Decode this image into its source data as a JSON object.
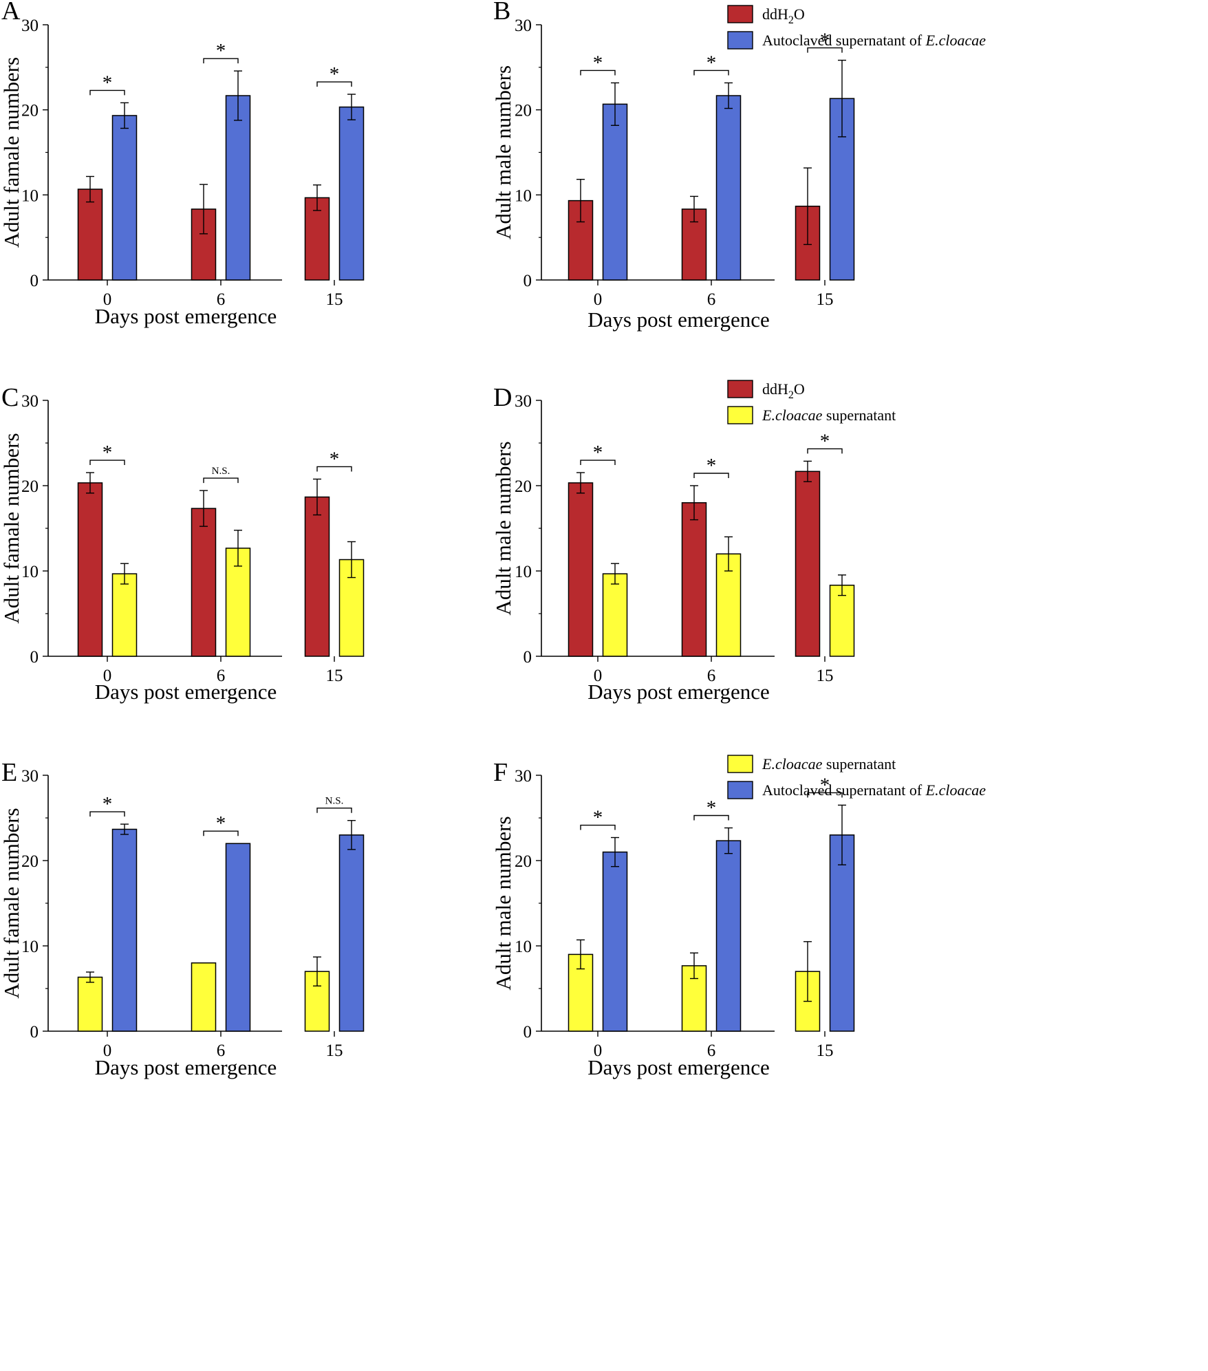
{
  "colors": {
    "ddh2o": "#b82a2e",
    "autoclaved": "#5470d4",
    "supernatant": "#ffff3a",
    "axis": "#000000"
  },
  "x_label": "Days post emergence",
  "chart_data": [
    {
      "type": "bar",
      "panel": "A",
      "categories": [
        "0",
        "6",
        "15"
      ],
      "ylabel": "Adult famale numbers",
      "xlabel": "Days post emergence",
      "ylim": [
        0,
        30
      ],
      "yticks": [
        0,
        10,
        20,
        30
      ],
      "series": [
        {
          "name": "ddH2O",
          "color": "ddh2o",
          "values": [
            10.67,
            8.33,
            9.67
          ],
          "errors": [
            1.5,
            2.9,
            1.5
          ]
        },
        {
          "name": "Autoclaved supernatant of E.cloacae",
          "color": "autoclaved",
          "values": [
            19.33,
            21.67,
            20.33
          ],
          "errors": [
            1.5,
            2.9,
            1.5
          ]
        }
      ],
      "significance": [
        "*",
        "*",
        "*"
      ],
      "legend": null
    },
    {
      "type": "bar",
      "panel": "B",
      "categories": [
        "0",
        "6",
        "15"
      ],
      "ylabel": "Adult male numbers",
      "xlabel": "Days post emergence",
      "ylim": [
        0,
        30
      ],
      "yticks": [
        0,
        10,
        20,
        30
      ],
      "series": [
        {
          "name": "ddH2O",
          "color": "ddh2o",
          "values": [
            9.33,
            8.33,
            8.67
          ],
          "errors": [
            2.5,
            1.5,
            4.5
          ]
        },
        {
          "name": "Autoclaved supernatant of E.cloacae",
          "color": "autoclaved",
          "values": [
            20.67,
            21.67,
            21.33
          ],
          "errors": [
            2.5,
            1.5,
            4.5
          ]
        }
      ],
      "significance": [
        "*",
        "*",
        "*"
      ],
      "legend": {
        "position": "top-right",
        "entries": [
          {
            "color": "ddh2o",
            "plain": "ddH",
            "sub": "2",
            "tail": "O",
            "italic": ""
          },
          {
            "color": "autoclaved",
            "plain": "Autoclaved supernatant of ",
            "sub": "",
            "tail": "",
            "italic": "E.cloacae"
          }
        ]
      }
    },
    {
      "type": "bar",
      "panel": "C",
      "categories": [
        "0",
        "6",
        "15"
      ],
      "ylabel": "Adult famale numbers",
      "xlabel": "Days post emergence",
      "ylim": [
        0,
        30
      ],
      "yticks": [
        0,
        10,
        20,
        30
      ],
      "series": [
        {
          "name": "ddH2O",
          "color": "ddh2o",
          "values": [
            20.33,
            17.33,
            18.67
          ],
          "errors": [
            1.2,
            2.1,
            2.1
          ]
        },
        {
          "name": "E.cloacae supernatant",
          "color": "supernatant",
          "values": [
            9.67,
            12.67,
            11.33
          ],
          "errors": [
            1.2,
            2.1,
            2.1
          ]
        }
      ],
      "significance": [
        "*",
        "N.S.",
        "*"
      ],
      "legend": null
    },
    {
      "type": "bar",
      "panel": "D",
      "categories": [
        "0",
        "6",
        "15"
      ],
      "ylabel": "Adult male numbers",
      "xlabel": "Days post emergence",
      "ylim": [
        0,
        30
      ],
      "yticks": [
        0,
        10,
        20,
        30
      ],
      "series": [
        {
          "name": "ddH2O",
          "color": "ddh2o",
          "values": [
            20.33,
            18.0,
            21.67
          ],
          "errors": [
            1.2,
            2.0,
            1.2
          ]
        },
        {
          "name": "E.cloacae supernatant",
          "color": "supernatant",
          "values": [
            9.67,
            12.0,
            8.33
          ],
          "errors": [
            1.2,
            2.0,
            1.2
          ]
        }
      ],
      "significance": [
        "*",
        "*",
        "*"
      ],
      "legend": {
        "position": "top-right",
        "entries": [
          {
            "color": "ddh2o",
            "plain": "ddH",
            "sub": "2",
            "tail": "O",
            "italic": ""
          },
          {
            "color": "supernatant",
            "plain": "",
            "sub": "",
            "tail": " supernatant",
            "italic": "E.cloacae"
          }
        ]
      }
    },
    {
      "type": "bar",
      "panel": "E",
      "categories": [
        "0",
        "6",
        "15"
      ],
      "ylabel": "Adult famale numbers",
      "xlabel": "Days post emergence",
      "ylim": [
        0,
        30
      ],
      "yticks": [
        0,
        10,
        20,
        30
      ],
      "series": [
        {
          "name": "E.cloacae supernatant",
          "color": "supernatant",
          "values": [
            6.33,
            8.0,
            7.0
          ],
          "errors": [
            0.6,
            0,
            1.7
          ]
        },
        {
          "name": "Autoclaved supernatant of E.cloacae",
          "color": "autoclaved",
          "values": [
            23.67,
            22.0,
            23.0
          ],
          "errors": [
            0.6,
            0,
            1.7
          ]
        }
      ],
      "significance": [
        "*",
        "*",
        "N.S."
      ],
      "legend": null
    },
    {
      "type": "bar",
      "panel": "F",
      "categories": [
        "0",
        "6",
        "15"
      ],
      "ylabel": "Adult male numbers",
      "xlabel": "Days post emergence",
      "ylim": [
        0,
        30
      ],
      "yticks": [
        0,
        10,
        20,
        30
      ],
      "series": [
        {
          "name": "E.cloacae supernatant",
          "color": "supernatant",
          "values": [
            9.0,
            7.67,
            7.0
          ],
          "errors": [
            1.7,
            1.5,
            3.5
          ]
        },
        {
          "name": "Autoclaved supernatant of E.cloacae",
          "color": "autoclaved",
          "values": [
            21.0,
            22.33,
            23.0
          ],
          "errors": [
            1.7,
            1.5,
            3.5
          ]
        }
      ],
      "significance": [
        "*",
        "*",
        "*"
      ],
      "legend": {
        "position": "top-right",
        "entries": [
          {
            "color": "supernatant",
            "plain": "",
            "sub": "",
            "tail": " supernatant",
            "italic": "E.cloacae"
          },
          {
            "color": "autoclaved",
            "plain": "Autoclaved supernatant of ",
            "sub": "",
            "tail": "",
            "italic": "E.cloacae"
          }
        ]
      }
    }
  ]
}
